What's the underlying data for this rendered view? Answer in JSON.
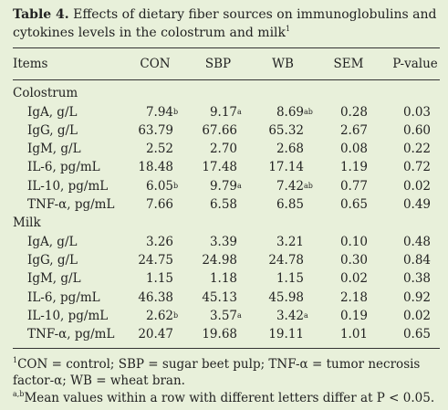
{
  "title": {
    "label": "Table 4.",
    "text": "Effects of dietary fiber sources on immunoglobulins and cytokines levels in the colostrum and milk",
    "note": "1"
  },
  "header": [
    "Items",
    "CON",
    "SBP",
    "WB",
    "SEM",
    "P-value"
  ],
  "sections": [
    {
      "name": "Colostrum",
      "rows": [
        {
          "item": "IgA, g/L",
          "cells": [
            [
              "7.94",
              "b"
            ],
            [
              "9.17",
              "a"
            ],
            [
              "8.69",
              "ab"
            ],
            "0.28",
            "0.03"
          ]
        },
        {
          "item": "IgG, g/L",
          "cells": [
            "63.79",
            "67.66",
            "65.32",
            "2.67",
            "0.60"
          ]
        },
        {
          "item": "IgM, g/L",
          "cells": [
            "2.52",
            "2.70",
            "2.68",
            "0.08",
            "0.22"
          ]
        },
        {
          "item": "IL-6, pg/mL",
          "cells": [
            "18.48",
            "17.48",
            "17.14",
            "1.19",
            "0.72"
          ]
        },
        {
          "item": "IL-10, pg/mL",
          "cells": [
            [
              "6.05",
              "b"
            ],
            [
              "9.79",
              "a"
            ],
            [
              "7.42",
              "ab"
            ],
            "0.77",
            "0.02"
          ]
        },
        {
          "item": "TNF-α, pg/mL",
          "cells": [
            "7.66",
            "6.58",
            "6.85",
            "0.65",
            "0.49"
          ]
        }
      ]
    },
    {
      "name": "Milk",
      "rows": [
        {
          "item": "IgA, g/L",
          "cells": [
            "3.26",
            "3.39",
            "3.21",
            "0.10",
            "0.48"
          ]
        },
        {
          "item": "IgG, g/L",
          "cells": [
            "24.75",
            "24.98",
            "24.78",
            "0.30",
            "0.84"
          ]
        },
        {
          "item": "IgM, g/L",
          "cells": [
            "1.15",
            "1.18",
            "1.15",
            "0.02",
            "0.38"
          ]
        },
        {
          "item": "IL-6, pg/mL",
          "cells": [
            "46.38",
            "45.13",
            "45.98",
            "2.18",
            "0.92"
          ]
        },
        {
          "item": "IL-10, pg/mL",
          "cells": [
            [
              "2.62",
              "b"
            ],
            [
              "3.57",
              "a"
            ],
            [
              "3.42",
              "a"
            ],
            "0.19",
            "0.02"
          ]
        },
        {
          "item": "TNF-α, pg/mL",
          "cells": [
            "20.47",
            "19.68",
            "19.11",
            "1.01",
            "0.65"
          ]
        }
      ]
    }
  ],
  "footnotes": [
    {
      "mark": "1",
      "text": "CON = control; SBP = sugar beet pulp; TNF-α = tumor necrosis factor-α; WB = wheat bran."
    },
    {
      "mark": "a,b",
      "text": "Mean values within a row with different letters differ at P < 0.05."
    }
  ]
}
